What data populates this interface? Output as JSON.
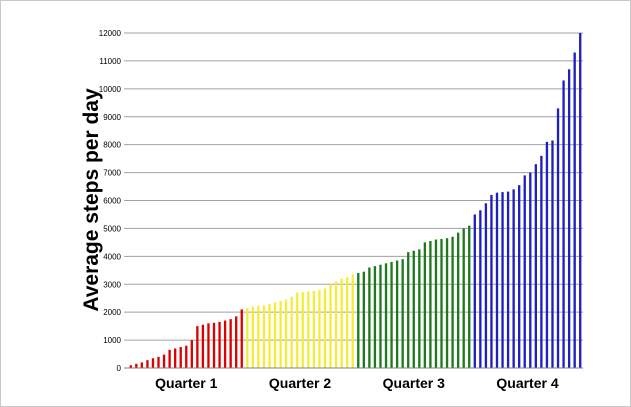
{
  "chart_data": {
    "type": "bar",
    "title": "",
    "xlabel": "",
    "ylabel": "Average steps  per day",
    "ylim": [
      0,
      12000
    ],
    "yticks": [
      0,
      1000,
      2000,
      3000,
      4000,
      5000,
      6000,
      7000,
      8000,
      9000,
      10000,
      11000,
      12000
    ],
    "grid": true,
    "colors": {
      "Quarter 1": "#dd0000",
      "Quarter 2": "#f2ee38",
      "Quarter 3": "#1c7a1c",
      "Quarter 4": "#1f1fbf"
    },
    "groups": [
      {
        "name": "Quarter 1",
        "values": [
          100,
          150,
          200,
          280,
          350,
          400,
          480,
          650,
          700,
          750,
          800,
          1000,
          1500,
          1550,
          1600,
          1620,
          1650,
          1700,
          1750,
          1850,
          2100
        ]
      },
      {
        "name": "Quarter 2",
        "values": [
          2150,
          2200,
          2220,
          2250,
          2300,
          2350,
          2400,
          2450,
          2550,
          2700,
          2720,
          2750,
          2760,
          2800,
          2850,
          3000,
          3100,
          3200,
          3250,
          3350
        ]
      },
      {
        "name": "Quarter 3",
        "values": [
          3400,
          3450,
          3600,
          3650,
          3700,
          3750,
          3800,
          3850,
          3900,
          4150,
          4200,
          4250,
          4500,
          4550,
          4600,
          4620,
          4650,
          4700,
          4850,
          5000,
          5100
        ]
      },
      {
        "name": "Quarter 4",
        "values": [
          5500,
          5650,
          5900,
          6200,
          6280,
          6300,
          6320,
          6400,
          6550,
          6900,
          7000,
          7300,
          7600,
          8100,
          8150,
          9300,
          10300,
          10700,
          11300,
          12000
        ]
      }
    ]
  }
}
